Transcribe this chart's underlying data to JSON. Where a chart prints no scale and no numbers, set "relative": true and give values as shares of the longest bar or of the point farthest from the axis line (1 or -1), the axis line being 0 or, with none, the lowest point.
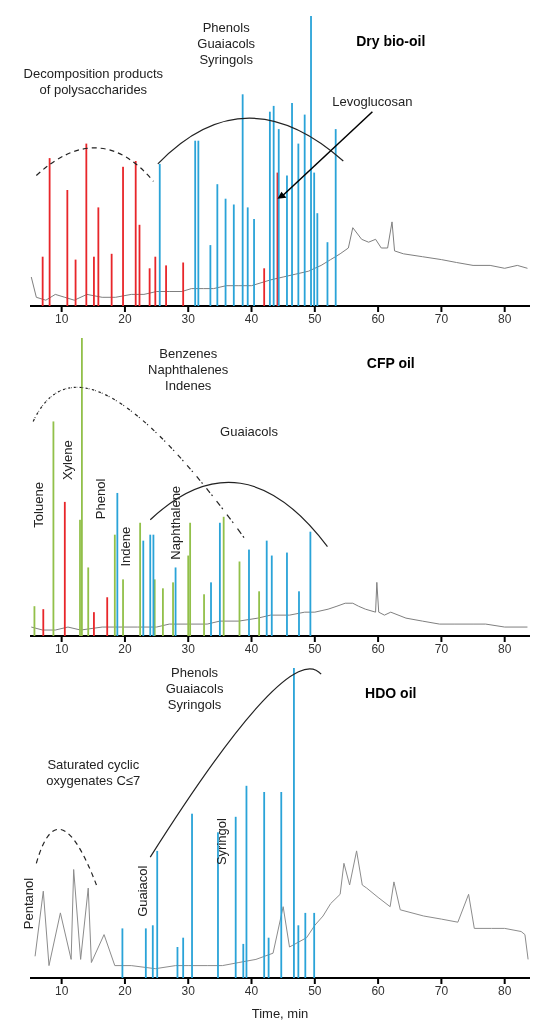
{
  "chart_data": [
    {
      "type": "line",
      "relative": true,
      "title": "Dry bio-oil",
      "xlim": [
        5,
        84
      ],
      "xticks": [
        10,
        20,
        30,
        40,
        50,
        60,
        70,
        80
      ],
      "annotations": [
        "Decomposition products\nof polysaccharides",
        "Phenols\nGuaiacols\nSyringols",
        {
          "text": "Levoglucosan",
          "x": 44.1,
          "y": 0.37
        }
      ],
      "series": [
        {
          "color": "#7f7f7f",
          "x": [
            5.2,
            6,
            7.5,
            9,
            10.5,
            12,
            14,
            16.4,
            18.5,
            21,
            23,
            25,
            27,
            29,
            30.5,
            32.4,
            34,
            36,
            38,
            40,
            41.5,
            43,
            45,
            47,
            49,
            51,
            52.5,
            54,
            55.3,
            56,
            57.4,
            58.5,
            59.6,
            60.5,
            61.5,
            62.2,
            62.6,
            64,
            67,
            70,
            72.4,
            75,
            77.7,
            80,
            82,
            83.6
          ],
          "values": [
            0.1,
            0.03,
            0.02,
            0.04,
            0.03,
            0.02,
            0.04,
            0.03,
            0.03,
            0.04,
            0.04,
            0.05,
            0.05,
            0.05,
            0.06,
            0.06,
            0.06,
            0.07,
            0.07,
            0.07,
            0.08,
            0.09,
            0.1,
            0.11,
            0.12,
            0.14,
            0.16,
            0.18,
            0.2,
            0.27,
            0.23,
            0.22,
            0.23,
            0.2,
            0.2,
            0.29,
            0.19,
            0.18,
            0.17,
            0.16,
            0.15,
            0.14,
            0.14,
            0.13,
            0.14,
            0.13
          ]
        },
        {
          "type": "bar",
          "color": "#e8262a",
          "x": [
            7,
            8.1,
            10.9,
            12.2,
            13.9,
            15.1,
            15.8,
            17.9,
            19.7,
            21.7,
            22.3,
            23.9,
            24.8,
            26.5,
            29.2,
            42,
            44.1
          ],
          "values": [
            0.17,
            0.51,
            0.4,
            0.16,
            0.56,
            0.17,
            0.34,
            0.18,
            0.48,
            0.5,
            0.28,
            0.13,
            0.17,
            0.14,
            0.15,
            0.13,
            0.46
          ]
        },
        {
          "type": "bar",
          "color": "#2aa3d8",
          "x": [
            25.5,
            31.1,
            31.6,
            33.5,
            34.6,
            35.9,
            37.2,
            38.6,
            39.4,
            40.4,
            42.9,
            43.5,
            44.3,
            45.6,
            46.4,
            47.4,
            48.4,
            49.4,
            49.9,
            50.4,
            52,
            53.3
          ],
          "values": [
            0.49,
            0.57,
            0.57,
            0.21,
            0.42,
            0.37,
            0.35,
            0.73,
            0.34,
            0.3,
            0.67,
            0.69,
            0.61,
            0.45,
            0.7,
            0.56,
            0.66,
            1,
            0.46,
            0.32,
            0.22,
            0.61
          ]
        }
      ]
    },
    {
      "type": "line",
      "relative": true,
      "title": "CFP oil",
      "xlim": [
        5,
        84
      ],
      "xticks": [
        10,
        20,
        30,
        40,
        50,
        60,
        70,
        80
      ],
      "annotations": [
        "Benzenes\nNaphthalenes\nIndenes",
        "Guaiacols",
        {
          "text": "Toluene",
          "x": 8.7,
          "y": 0.44
        },
        {
          "text": "Xylene",
          "x": 13.2,
          "y": 0.59
        },
        {
          "text": "Phenol",
          "x": 18.4,
          "y": 0.46
        },
        {
          "text": "Indene",
          "x": 22.4,
          "y": 0.3
        },
        {
          "text": "Naphthalene",
          "x": 30.3,
          "y": 0.38
        }
      ],
      "series": [
        {
          "color": "#7f7f7f",
          "x": [
            5.2,
            7,
            9,
            11,
            13,
            16.4,
            19,
            22,
            25,
            27,
            30,
            33,
            35,
            38,
            41,
            43,
            46,
            48.4,
            50,
            52.1,
            53.5,
            54.8,
            56,
            56.9,
            58,
            59.6,
            59.8,
            60.1,
            61,
            62,
            64.4,
            67,
            69.7,
            72,
            75,
            77,
            80,
            83.6
          ],
          "values": [
            0.03,
            0.02,
            0.02,
            0.03,
            0.02,
            0.03,
            0.03,
            0.03,
            0.03,
            0.04,
            0.04,
            0.04,
            0.05,
            0.05,
            0.06,
            0.07,
            0.07,
            0.08,
            0.08,
            0.09,
            0.1,
            0.11,
            0.11,
            0.1,
            0.09,
            0.08,
            0.18,
            0.08,
            0.07,
            0.08,
            0.06,
            0.05,
            0.04,
            0.04,
            0.04,
            0.04,
            0.03,
            0.03
          ]
        },
        {
          "type": "bar",
          "color": "#92c04a",
          "x": [
            5.7,
            8.7,
            12.9,
            13.2,
            14.2,
            18.4,
            19.7,
            22.4,
            24.7,
            26,
            27.6,
            30,
            30.3,
            32.5,
            35.6,
            38.1,
            41.2
          ],
          "values": [
            0.1,
            0.72,
            0.39,
            1,
            0.23,
            0.34,
            0.19,
            0.38,
            0.19,
            0.16,
            0.18,
            0.27,
            0.38,
            0.14,
            0.4,
            0.25,
            0.15
          ]
        },
        {
          "type": "bar",
          "color": "#e8262a",
          "x": [
            7.1,
            10.5,
            15.1,
            17.2
          ],
          "values": [
            0.09,
            0.45,
            0.08,
            0.13
          ]
        },
        {
          "type": "bar",
          "color": "#2aa3d8",
          "x": [
            18.8,
            22.9,
            24,
            24.5,
            28,
            33.6,
            35,
            39.6,
            42.4,
            43.2,
            45.6,
            47.5,
            49.3
          ],
          "values": [
            0.48,
            0.32,
            0.34,
            0.34,
            0.23,
            0.18,
            0.38,
            0.29,
            0.32,
            0.27,
            0.28,
            0.15,
            0.35
          ]
        }
      ]
    },
    {
      "type": "line",
      "relative": true,
      "title": "HDO oil",
      "xlabel": "Time, min",
      "xlim": [
        5,
        84
      ],
      "xticks": [
        10,
        20,
        30,
        40,
        50,
        60,
        70,
        80
      ],
      "annotations": [
        "Saturated cyclic\noxygenates C≤7",
        "Phenols\nGuaiacols\nSyringols",
        {
          "text": "Pentanol",
          "x": 7.1,
          "y": 0.24
        },
        {
          "text": "Guaiacol",
          "x": 25.1,
          "y": 0.28
        },
        {
          "text": "Syringol",
          "x": 37.5,
          "y": 0.44
        }
      ],
      "series": [
        {
          "color": "#8c8c8c",
          "x": [
            5.8,
            7.1,
            8,
            9.8,
            11.5,
            11.9,
            13,
            14.2,
            14.7,
            16.7,
            18.4,
            21,
            24.8,
            28,
            30.1,
            33,
            35.4,
            38,
            40.7,
            43.4,
            45,
            46,
            48.7,
            50,
            51.3,
            52.5,
            54,
            54.6,
            55.5,
            56.6,
            57.5,
            58.2,
            60,
            61.9,
            62.5,
            63.5,
            67.2,
            70,
            72.6,
            74.3,
            75.2,
            77.9,
            80,
            82.6,
            83.2,
            83.7
          ],
          "values": [
            0.07,
            0.28,
            0.04,
            0.21,
            0.06,
            0.35,
            0.06,
            0.29,
            0.05,
            0.14,
            0.04,
            0.04,
            0.03,
            0.04,
            0.04,
            0.04,
            0.04,
            0.05,
            0.06,
            0.08,
            0.23,
            0.1,
            0.13,
            0.17,
            0.2,
            0.24,
            0.27,
            0.37,
            0.3,
            0.41,
            0.3,
            0.29,
            0.26,
            0.23,
            0.31,
            0.22,
            0.2,
            0.19,
            0.18,
            0.27,
            0.16,
            0.16,
            0.16,
            0.15,
            0.14,
            0.06
          ]
        },
        {
          "type": "bar",
          "color": "#2aa3d8",
          "x": [
            19.6,
            23.3,
            24.4,
            25.1,
            28.3,
            29.2,
            30.6,
            34.7,
            37.5,
            38.7,
            39.2,
            42,
            42.7,
            44.7,
            46.7,
            47.4,
            48.5,
            49.9
          ],
          "values": [
            0.16,
            0.16,
            0.17,
            0.41,
            0.1,
            0.13,
            0.53,
            0.47,
            0.52,
            0.11,
            0.62,
            0.6,
            0.13,
            0.6,
            1,
            0.17,
            0.21,
            0.21
          ]
        }
      ]
    }
  ]
}
